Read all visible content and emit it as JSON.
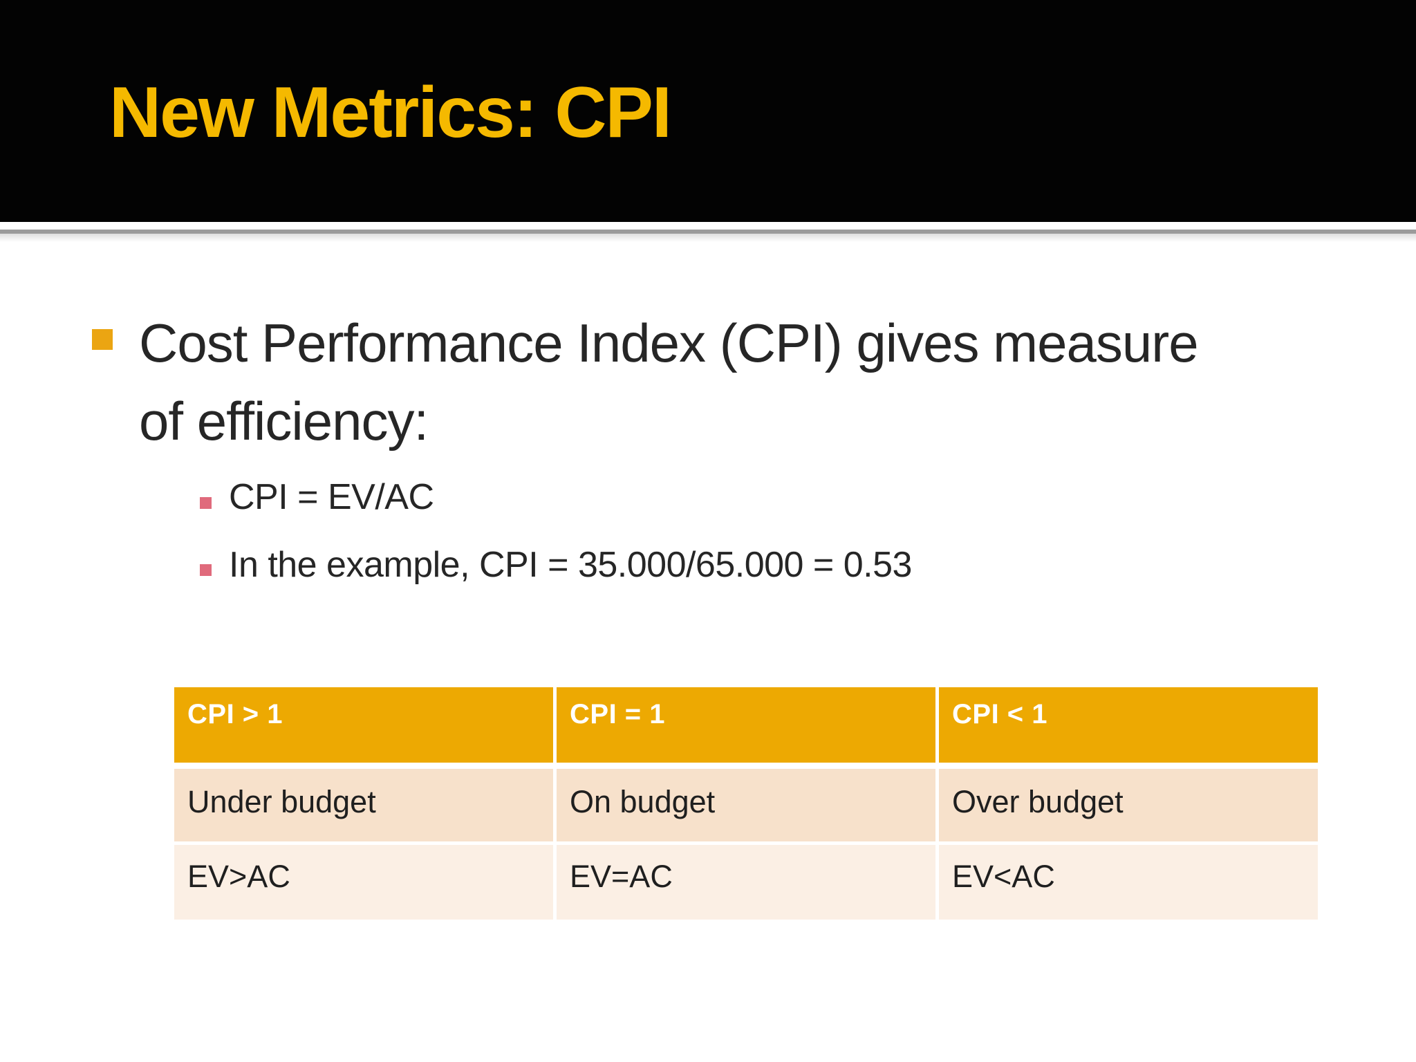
{
  "slide": {
    "title": "New Metrics: CPI"
  },
  "bullets": {
    "main": {
      "line1": "Cost Performance Index (CPI) gives measure",
      "line2": "of efficiency:"
    },
    "sub": [
      "CPI = EV/AC",
      "In the example, CPI = 35.000/65.000 = 0.53"
    ]
  },
  "table": {
    "header": [
      "CPI > 1",
      "CPI = 1",
      "CPI < 1"
    ],
    "rows": [
      [
        "Under budget",
        "On budget",
        "Over budget"
      ],
      [
        "EV>AC",
        "EV=AC",
        "EV<AC"
      ]
    ]
  },
  "colors": {
    "title_text": "#f5b900",
    "title_band_bg": "#030303",
    "separator_line": "#9b9b9b",
    "level1_bullet_square": "#eba512",
    "level2_bullet_square": "#e06a7c",
    "table_header_bg": "#eda902",
    "table_header_text": "#ffffff",
    "table_row1_bg": "#f7e1cb",
    "table_row2_bg": "#fbefe4",
    "body_text": "#262626"
  }
}
